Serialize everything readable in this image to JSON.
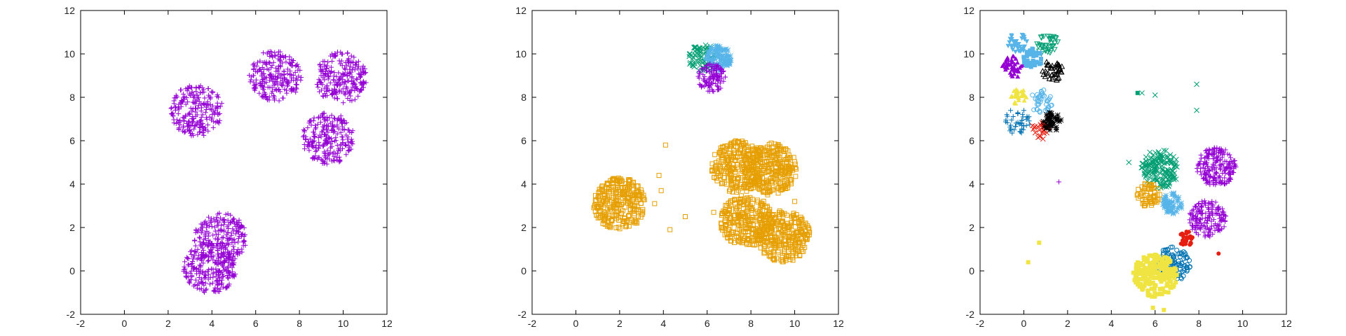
{
  "chart_data": [
    {
      "type": "scatter",
      "title": "",
      "xlabel": "",
      "ylabel": "",
      "xlim": [
        -2,
        12
      ],
      "ylim": [
        -2,
        12
      ],
      "xticks": [
        "-2",
        "0",
        "2",
        "4",
        "6",
        "8",
        "10",
        "12"
      ],
      "yticks": [
        "-2",
        "0",
        "2",
        "4",
        "6",
        "8",
        "10",
        "12"
      ],
      "grid": false,
      "series": [
        {
          "color": "#9400D3",
          "marker": "plus",
          "clusters": [
            {
              "cx": 3.3,
              "cy": 7.4,
              "r": 1.2,
              "n": 230
            },
            {
              "cx": 6.9,
              "cy": 9.0,
              "r": 1.2,
              "n": 230
            },
            {
              "cx": 9.9,
              "cy": 8.9,
              "r": 1.2,
              "n": 230
            },
            {
              "cx": 9.3,
              "cy": 6.1,
              "r": 1.2,
              "n": 230
            },
            {
              "cx": 4.4,
              "cy": 1.5,
              "r": 1.2,
              "n": 230
            },
            {
              "cx": 3.9,
              "cy": 0.1,
              "r": 1.2,
              "n": 230
            }
          ]
        }
      ]
    },
    {
      "type": "scatter",
      "title": "",
      "xlabel": "",
      "ylabel": "",
      "xlim": [
        -2,
        12
      ],
      "ylim": [
        -2,
        12
      ],
      "xticks": [
        "-2",
        "0",
        "2",
        "4",
        "6",
        "8",
        "10",
        "12"
      ],
      "yticks": [
        "-2",
        "0",
        "2",
        "4",
        "6",
        "8",
        "10",
        "12"
      ],
      "grid": false,
      "series": [
        {
          "color": "#E69F00",
          "marker": "square-open",
          "clusters": [
            {
              "cx": 2.0,
              "cy": 3.1,
              "r": 1.2,
              "n": 280
            },
            {
              "cx": 7.4,
              "cy": 4.8,
              "r": 1.2,
              "n": 280
            },
            {
              "cx": 8.9,
              "cy": 4.7,
              "r": 1.2,
              "n": 280
            },
            {
              "cx": 7.8,
              "cy": 2.3,
              "r": 1.2,
              "n": 280
            },
            {
              "cx": 9.5,
              "cy": 1.6,
              "r": 1.2,
              "n": 280
            }
          ],
          "points": [
            [
              4.1,
              5.8
            ],
            [
              3.8,
              4.4
            ],
            [
              3.9,
              3.7
            ],
            [
              3.6,
              3.1
            ],
            [
              5.0,
              2.5
            ],
            [
              4.3,
              1.9
            ],
            [
              10.0,
              3.2
            ],
            [
              6.3,
              2.7
            ]
          ]
        },
        {
          "color": "#009E73",
          "marker": "x",
          "clusters": [
            {
              "cx": 5.8,
              "cy": 9.8,
              "r": 0.65,
              "n": 90
            }
          ]
        },
        {
          "color": "#56B4E9",
          "marker": "star",
          "clusters": [
            {
              "cx": 6.5,
              "cy": 9.8,
              "r": 0.6,
              "n": 90
            }
          ]
        },
        {
          "color": "#9400D3",
          "marker": "plus",
          "clusters": [
            {
              "cx": 6.2,
              "cy": 8.9,
              "r": 0.65,
              "n": 110
            }
          ]
        }
      ]
    },
    {
      "type": "scatter",
      "title": "",
      "xlabel": "",
      "ylabel": "",
      "xlim": [
        -2,
        12
      ],
      "ylim": [
        -2,
        12
      ],
      "xticks": [
        "-2",
        "0",
        "2",
        "4",
        "6",
        "8",
        "10",
        "12"
      ],
      "yticks": [
        "-2",
        "0",
        "2",
        "4",
        "6",
        "8",
        "10",
        "12"
      ],
      "grid": false,
      "series": [
        {
          "color": "#56B4E9",
          "marker": "triangle-down",
          "clusters": [
            {
              "cx": -0.3,
              "cy": 10.5,
              "r": 0.45,
              "n": 35
            }
          ]
        },
        {
          "color": "#009E73",
          "marker": "triangle-down-open",
          "clusters": [
            {
              "cx": 1.1,
              "cy": 10.4,
              "r": 0.5,
              "n": 35
            }
          ]
        },
        {
          "color": "#9400D3",
          "marker": "triangle",
          "clusters": [
            {
              "cx": -0.5,
              "cy": 9.4,
              "r": 0.5,
              "n": 40
            }
          ]
        },
        {
          "color": "#56B4E9",
          "marker": "square",
          "clusters": [
            {
              "cx": 0.4,
              "cy": 9.8,
              "r": 0.45,
              "n": 40
            }
          ]
        },
        {
          "color": "#000000",
          "marker": "triangle-open",
          "clusters": [
            {
              "cx": 1.3,
              "cy": 9.2,
              "r": 0.5,
              "n": 40
            }
          ]
        },
        {
          "color": "#F0E442",
          "marker": "triangle",
          "clusters": [
            {
              "cx": -0.2,
              "cy": 8.0,
              "r": 0.4,
              "n": 30
            }
          ]
        },
        {
          "color": "#56B4E9",
          "marker": "circle-open",
          "clusters": [
            {
              "cx": 0.8,
              "cy": 7.8,
              "r": 0.55,
              "n": 40
            }
          ]
        },
        {
          "color": "#0072B2",
          "marker": "plus",
          "clusters": [
            {
              "cx": -0.3,
              "cy": 6.9,
              "r": 0.6,
              "n": 45
            }
          ]
        },
        {
          "color": "#E51E10",
          "marker": "x",
          "clusters": [
            {
              "cx": 0.8,
              "cy": 6.5,
              "r": 0.45,
              "n": 30
            }
          ]
        },
        {
          "color": "#000000",
          "marker": "star",
          "clusters": [
            {
              "cx": 1.3,
              "cy": 6.9,
              "r": 0.45,
              "n": 35
            }
          ]
        },
        {
          "color": "#009E73",
          "marker": "x",
          "clusters": [
            {
              "cx": 6.2,
              "cy": 4.7,
              "r": 0.9,
              "n": 160
            }
          ],
          "points": [
            [
              5.4,
              8.2
            ],
            [
              6.0,
              8.1
            ],
            [
              7.9,
              8.6
            ],
            [
              7.9,
              7.4
            ],
            [
              4.8,
              5.0
            ]
          ]
        },
        {
          "color": "#E69F00",
          "marker": "square-open",
          "clusters": [
            {
              "cx": 5.7,
              "cy": 3.5,
              "r": 0.55,
              "n": 60
            }
          ]
        },
        {
          "color": "#56B4E9",
          "marker": "star",
          "clusters": [
            {
              "cx": 6.8,
              "cy": 3.1,
              "r": 0.5,
              "n": 50
            }
          ]
        },
        {
          "color": "#9400D3",
          "marker": "plus",
          "clusters": [
            {
              "cx": 8.8,
              "cy": 4.8,
              "r": 0.9,
              "n": 200
            },
            {
              "cx": 8.4,
              "cy": 2.4,
              "r": 0.85,
              "n": 170
            }
          ],
          "points": [
            [
              1.6,
              4.1
            ]
          ]
        },
        {
          "color": "#E51E10",
          "marker": "circle",
          "clusters": [
            {
              "cx": 7.4,
              "cy": 1.5,
              "r": 0.35,
              "n": 30
            }
          ],
          "points": [
            [
              8.9,
              0.8
            ]
          ]
        },
        {
          "color": "#0072B2",
          "marker": "circle-open",
          "clusters": [
            {
              "cx": 6.8,
              "cy": 0.3,
              "r": 0.8,
              "n": 110
            }
          ]
        },
        {
          "color": "#F0E442",
          "marker": "square",
          "clusters": [
            {
              "cx": 6.0,
              "cy": -0.2,
              "r": 1.0,
              "n": 200
            }
          ],
          "points": [
            [
              0.2,
              0.4
            ],
            [
              0.7,
              1.3
            ],
            [
              5.9,
              -1.7
            ],
            [
              6.4,
              -1.8
            ]
          ]
        },
        {
          "color": "#009E73",
          "marker": "square",
          "points": [
            [
              5.2,
              8.2
            ]
          ]
        }
      ]
    }
  ]
}
